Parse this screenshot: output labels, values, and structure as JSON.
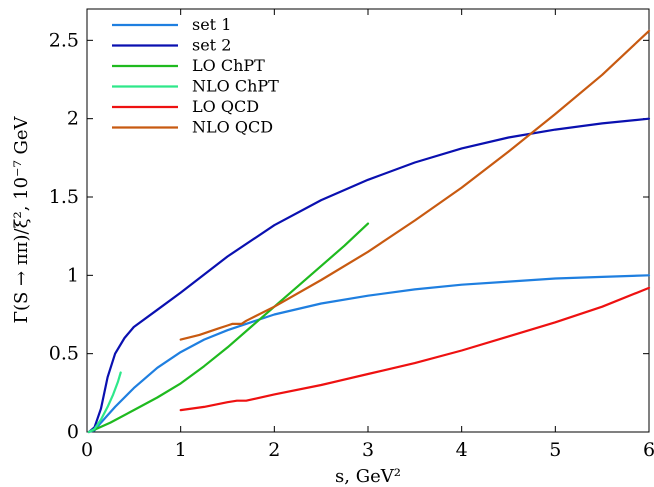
{
  "chart_data": {
    "type": "line",
    "xlabel": "s, GeV²",
    "ylabel": "Γ(S → ππ)/ξ², 10⁻⁷ GeV",
    "xlim": [
      0,
      6
    ],
    "ylim": [
      0,
      2.7
    ],
    "xticks": [
      "0",
      "1",
      "2",
      "3",
      "4",
      "5",
      "6"
    ],
    "yticks": [
      "0",
      "0.5",
      "1",
      "1.5",
      "2",
      "2.5"
    ],
    "xtick_values": [
      0,
      1,
      2,
      3,
      4,
      5,
      6
    ],
    "ytick_values": [
      0,
      0.5,
      1,
      1.5,
      2,
      2.5
    ],
    "grid": false,
    "legend_position": "top-left",
    "series": [
      {
        "name": "set 1",
        "color": "#1f7fe0",
        "x": [
          0.02,
          0.08,
          0.15,
          0.3,
          0.5,
          0.75,
          1.0,
          1.25,
          1.5,
          1.75,
          2.0,
          2.5,
          3.0,
          3.5,
          4.0,
          4.5,
          5.0,
          5.5,
          6.0
        ],
        "y": [
          0.0,
          0.01,
          0.06,
          0.16,
          0.28,
          0.41,
          0.51,
          0.59,
          0.65,
          0.7,
          0.75,
          0.82,
          0.87,
          0.91,
          0.94,
          0.96,
          0.98,
          0.99,
          1.0
        ]
      },
      {
        "name": "set 2",
        "color": "#0a10b0",
        "x": [
          0.02,
          0.08,
          0.15,
          0.22,
          0.3,
          0.4,
          0.5,
          0.75,
          1.0,
          1.5,
          2.0,
          2.5,
          3.0,
          3.5,
          4.0,
          4.5,
          5.0,
          5.5,
          6.0
        ],
        "y": [
          0.0,
          0.03,
          0.15,
          0.35,
          0.5,
          0.6,
          0.67,
          0.78,
          0.89,
          1.12,
          1.32,
          1.48,
          1.61,
          1.72,
          1.81,
          1.88,
          1.93,
          1.97,
          2.0
        ]
      },
      {
        "name": "LO ChPT",
        "color": "#1fba1f",
        "x": [
          0.02,
          0.1,
          0.25,
          0.5,
          0.75,
          1.0,
          1.25,
          1.5,
          1.75,
          2.0,
          2.25,
          2.5,
          2.75,
          3.0
        ],
        "y": [
          0.0,
          0.02,
          0.06,
          0.14,
          0.22,
          0.31,
          0.42,
          0.54,
          0.67,
          0.8,
          0.93,
          1.06,
          1.19,
          1.33
        ]
      },
      {
        "name": "NLO ChPT",
        "color": "#2ee88a",
        "x": [
          0.02,
          0.08,
          0.15,
          0.22,
          0.28,
          0.33,
          0.36
        ],
        "y": [
          0.0,
          0.02,
          0.08,
          0.16,
          0.24,
          0.32,
          0.38
        ]
      },
      {
        "name": "LO QCD",
        "color": "#ee1111",
        "x": [
          1.0,
          1.25,
          1.5,
          1.6,
          1.7,
          2.0,
          2.5,
          3.0,
          3.5,
          4.0,
          4.5,
          5.0,
          5.5,
          6.0
        ],
        "y": [
          0.14,
          0.16,
          0.19,
          0.2,
          0.2,
          0.24,
          0.3,
          0.37,
          0.44,
          0.52,
          0.61,
          0.7,
          0.8,
          0.92
        ]
      },
      {
        "name": "NLO QCD",
        "color": "#c85a11",
        "x": [
          1.0,
          1.2,
          1.4,
          1.5,
          1.55,
          1.6,
          1.65,
          1.7,
          2.0,
          2.5,
          3.0,
          3.5,
          4.0,
          4.5,
          5.0,
          5.5,
          6.0
        ],
        "y": [
          0.59,
          0.62,
          0.66,
          0.68,
          0.69,
          0.69,
          0.69,
          0.71,
          0.8,
          0.97,
          1.15,
          1.35,
          1.56,
          1.79,
          2.03,
          2.28,
          2.56
        ]
      }
    ]
  }
}
